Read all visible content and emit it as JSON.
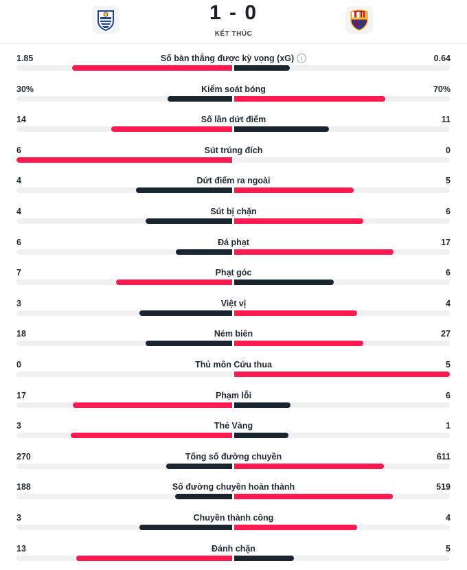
{
  "match": {
    "home_score": "1",
    "separator": "-",
    "away_score": "0",
    "status": "KẾT THÚC",
    "home_team_logo": "real-sociedad-crest",
    "away_team_logo": "barcelona-crest"
  },
  "colors": {
    "winner": "#ff1a4f",
    "loser": "#1b2530",
    "track": "#eff0f2"
  },
  "stats": [
    {
      "label": "Số bàn thắng được kỳ vọng (xG)",
      "home": "1.85",
      "away": "0.64",
      "home_value": 1.85,
      "away_value": 0.64,
      "info_icon": true
    },
    {
      "label": "Kiểm soát bóng",
      "home": "30%",
      "away": "70%",
      "home_value": 30,
      "away_value": 70
    },
    {
      "label": "Số lần dứt điểm",
      "home": "14",
      "away": "11",
      "home_value": 14,
      "away_value": 11
    },
    {
      "label": "Sút trúng đích",
      "home": "6",
      "away": "0",
      "home_value": 6,
      "away_value": 0
    },
    {
      "label": "Dứt điểm ra ngoài",
      "home": "4",
      "away": "5",
      "home_value": 4,
      "away_value": 5
    },
    {
      "label": "Sút bị chặn",
      "home": "4",
      "away": "6",
      "home_value": 4,
      "away_value": 6
    },
    {
      "label": "Đá phạt",
      "home": "6",
      "away": "17",
      "home_value": 6,
      "away_value": 17
    },
    {
      "label": "Phạt góc",
      "home": "7",
      "away": "6",
      "home_value": 7,
      "away_value": 6
    },
    {
      "label": "Việt vị",
      "home": "3",
      "away": "4",
      "home_value": 3,
      "away_value": 4
    },
    {
      "label": "Ném biên",
      "home": "18",
      "away": "27",
      "home_value": 18,
      "away_value": 27
    },
    {
      "label": "Thủ môn Cứu thua",
      "home": "0",
      "away": "5",
      "home_value": 0,
      "away_value": 5
    },
    {
      "label": "Phạm lỗi",
      "home": "17",
      "away": "6",
      "home_value": 17,
      "away_value": 6
    },
    {
      "label": "Thẻ Vàng",
      "home": "3",
      "away": "1",
      "home_value": 3,
      "away_value": 1
    },
    {
      "label": "Tổng số đường chuyền",
      "home": "270",
      "away": "611",
      "home_value": 270,
      "away_value": 611
    },
    {
      "label": "Số đường chuyền hoàn thành",
      "home": "188",
      "away": "519",
      "home_value": 188,
      "away_value": 519
    },
    {
      "label": "Chuyền thành công",
      "home": "3",
      "away": "4",
      "home_value": 3,
      "away_value": 4
    },
    {
      "label": "Đánh chặn",
      "home": "13",
      "away": "5",
      "home_value": 13,
      "away_value": 5
    }
  ]
}
